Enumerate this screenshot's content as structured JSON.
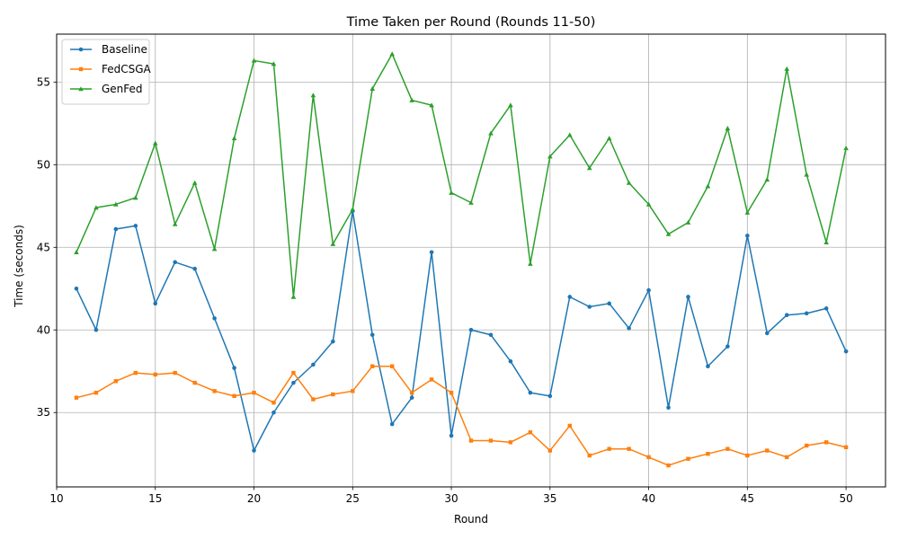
{
  "chart_data": {
    "type": "line",
    "title": "Time Taken per Round (Rounds 11-50)",
    "xlabel": "Round",
    "ylabel": "Time (seconds)",
    "xlim": [
      10,
      52
    ],
    "ylim": [
      30.5,
      57.9
    ],
    "xticks": [
      10,
      15,
      20,
      25,
      30,
      35,
      40,
      45,
      50
    ],
    "yticks": [
      35,
      40,
      45,
      50,
      55
    ],
    "grid": true,
    "legend_position": "top-left",
    "x": [
      11,
      12,
      13,
      14,
      15,
      16,
      17,
      18,
      19,
      20,
      21,
      22,
      23,
      24,
      25,
      26,
      27,
      28,
      29,
      30,
      31,
      32,
      33,
      34,
      35,
      36,
      37,
      38,
      39,
      40,
      41,
      42,
      43,
      44,
      45,
      46,
      47,
      48,
      49,
      50
    ],
    "series": [
      {
        "name": "Baseline",
        "color": "#1f77b4",
        "marker": "circle",
        "values": [
          42.5,
          40.0,
          46.1,
          46.3,
          41.6,
          44.1,
          43.7,
          40.7,
          37.7,
          32.7,
          35.0,
          36.8,
          37.9,
          39.3,
          47.2,
          39.7,
          34.3,
          35.9,
          44.7,
          33.6,
          40.0,
          39.7,
          38.1,
          36.2,
          36.0,
          42.0,
          41.4,
          41.6,
          40.1,
          42.4,
          35.3,
          42.0,
          37.8,
          39.0,
          45.7,
          39.8,
          40.9,
          41.0,
          41.3,
          38.7
        ]
      },
      {
        "name": "FedCSGA",
        "color": "#ff7f0e",
        "marker": "square",
        "values": [
          35.9,
          36.2,
          36.9,
          37.4,
          37.3,
          37.4,
          36.8,
          36.3,
          36.0,
          36.2,
          35.6,
          37.4,
          35.8,
          36.1,
          36.3,
          37.8,
          37.8,
          36.2,
          37.0,
          36.2,
          33.3,
          33.3,
          33.2,
          33.8,
          32.7,
          34.2,
          32.4,
          32.8,
          32.8,
          32.3,
          31.8,
          32.2,
          32.5,
          32.8,
          32.4,
          32.7,
          32.3,
          33.0,
          33.2,
          32.9
        ]
      },
      {
        "name": "GenFed",
        "color": "#2ca02c",
        "marker": "triangle",
        "values": [
          44.7,
          47.4,
          47.6,
          48.0,
          51.3,
          46.4,
          48.9,
          44.9,
          51.6,
          56.3,
          56.1,
          42.0,
          54.2,
          45.2,
          47.3,
          54.6,
          56.7,
          53.9,
          53.6,
          48.3,
          47.7,
          51.9,
          53.6,
          44.0,
          50.5,
          51.8,
          49.8,
          51.6,
          48.9,
          47.6,
          45.8,
          46.5,
          48.7,
          52.2,
          47.1,
          49.1,
          55.8,
          49.4,
          45.3,
          51.0
        ]
      }
    ]
  }
}
